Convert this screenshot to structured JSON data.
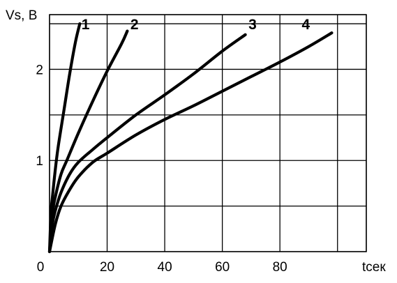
{
  "chart_data": {
    "type": "line",
    "title": "",
    "xlabel": "tсек",
    "ylabel": "Vs, В",
    "xlim": [
      0,
      110
    ],
    "ylim": [
      0,
      2.6
    ],
    "x_ticks": [
      0,
      20,
      40,
      60,
      80
    ],
    "x_tick_labels": [
      "0",
      "20",
      "40",
      "60",
      "80"
    ],
    "y_ticks": [
      1,
      2
    ],
    "y_tick_labels": [
      "1",
      "2"
    ],
    "x_grid": [
      0,
      20,
      40,
      60,
      80,
      100,
      110
    ],
    "y_grid": [
      0,
      0.5,
      1,
      1.5,
      2,
      2.5,
      2.6
    ],
    "grid": true,
    "series": [
      {
        "name": "1",
        "points": [
          [
            0,
            0
          ],
          [
            0.5,
            0.42
          ],
          [
            1,
            0.6
          ],
          [
            2,
            0.9
          ],
          [
            3,
            1.15
          ],
          [
            5,
            1.55
          ],
          [
            7,
            1.95
          ],
          [
            9,
            2.3
          ],
          [
            10.5,
            2.5
          ]
        ]
      },
      {
        "name": "2",
        "points": [
          [
            0,
            0
          ],
          [
            1,
            0.42
          ],
          [
            2,
            0.6
          ],
          [
            4,
            0.85
          ],
          [
            6,
            1.0
          ],
          [
            10,
            1.3
          ],
          [
            15,
            1.65
          ],
          [
            20,
            1.98
          ],
          [
            25,
            2.28
          ],
          [
            27,
            2.42
          ]
        ]
      },
      {
        "name": "3",
        "points": [
          [
            0,
            0
          ],
          [
            1,
            0.3
          ],
          [
            2,
            0.45
          ],
          [
            4,
            0.65
          ],
          [
            7,
            0.85
          ],
          [
            10,
            0.98
          ],
          [
            15,
            1.12
          ],
          [
            20,
            1.25
          ],
          [
            30,
            1.5
          ],
          [
            40,
            1.72
          ],
          [
            50,
            1.95
          ],
          [
            60,
            2.2
          ],
          [
            68,
            2.38
          ]
        ]
      },
      {
        "name": "4",
        "points": [
          [
            0,
            0
          ],
          [
            2,
            0.3
          ],
          [
            4,
            0.5
          ],
          [
            7,
            0.68
          ],
          [
            10,
            0.82
          ],
          [
            15,
            0.98
          ],
          [
            20,
            1.08
          ],
          [
            30,
            1.28
          ],
          [
            40,
            1.45
          ],
          [
            50,
            1.6
          ],
          [
            60,
            1.76
          ],
          [
            70,
            1.92
          ],
          [
            80,
            2.08
          ],
          [
            90,
            2.25
          ],
          [
            98,
            2.4
          ]
        ]
      }
    ],
    "label_positions": [
      {
        "name": "1",
        "x": 12.5,
        "y": 2.5
      },
      {
        "name": "2",
        "x": 29.5,
        "y": 2.5
      },
      {
        "name": "3",
        "x": 70.5,
        "y": 2.5
      },
      {
        "name": "4",
        "x": 89,
        "y": 2.5
      }
    ]
  }
}
